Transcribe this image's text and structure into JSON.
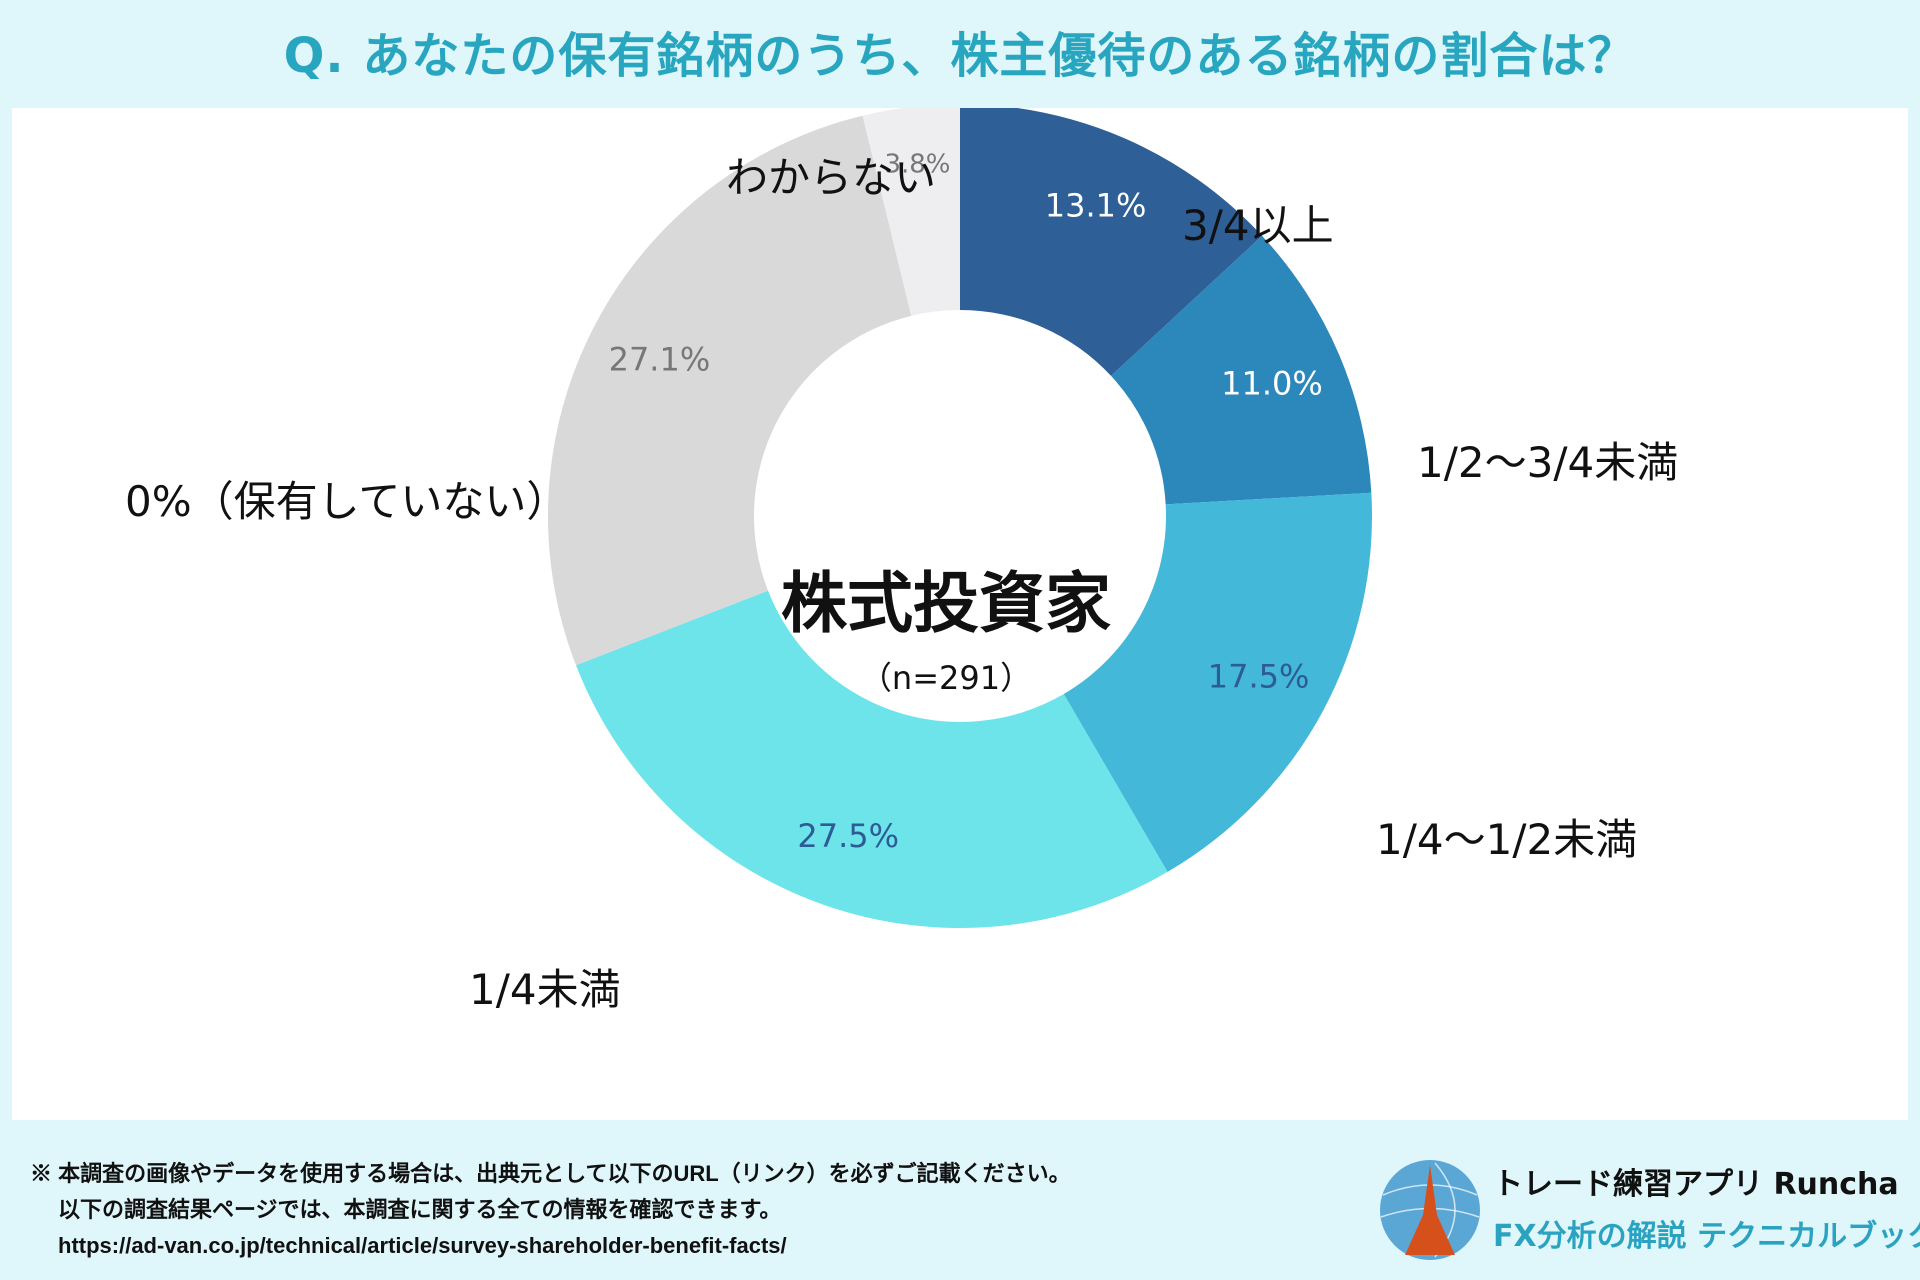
{
  "title": "Q. あなたの保有銘柄のうち、株主優待のある銘柄の割合は？",
  "chart_data": {
    "type": "pie",
    "donut": true,
    "center_title": "株式投資家",
    "center_subtitle": "（n=291）",
    "slices": [
      {
        "label": "3/4以上",
        "value": 13.1,
        "value_label": "13.1%",
        "color": "#2e5f97",
        "label_color": "#ffffff"
      },
      {
        "label": "1/2〜3/4未満",
        "value": 11.0,
        "value_label": "11.0%",
        "color": "#2c88bb",
        "label_color": "#ffffff"
      },
      {
        "label": "1/4〜1/2未満",
        "value": 17.5,
        "value_label": "17.5%",
        "color": "#43b8d8",
        "label_color": "#2d5b94"
      },
      {
        "label": "1/4未満",
        "value": 27.5,
        "value_label": "27.5%",
        "color": "#6de4e9",
        "label_color": "#2d5b94"
      },
      {
        "label": "0%（保有していない）",
        "value": 27.1,
        "value_label": "27.1%",
        "color": "#d9d9d9",
        "label_color": "#777777"
      },
      {
        "label": "わからない",
        "value": 3.8,
        "value_label": "3.8%",
        "color": "#eeeef0",
        "label_color": "#777777"
      }
    ]
  },
  "footer": {
    "note1": "※ 本調査の画像やデータを使用する場合は、出典元として以下のURL（リンク）を必ずご記載ください。",
    "note2": "以下の調査結果ページでは、本調査に関する全ての情報を確認できます。",
    "url": "https://ad-van.co.jp/technical/article/survey-shareholder-benefit-facts/"
  },
  "brand": {
    "line1": "トレード練習アプリ  Runcha",
    "line2": "FX分析の解説  テクニカルブック"
  }
}
